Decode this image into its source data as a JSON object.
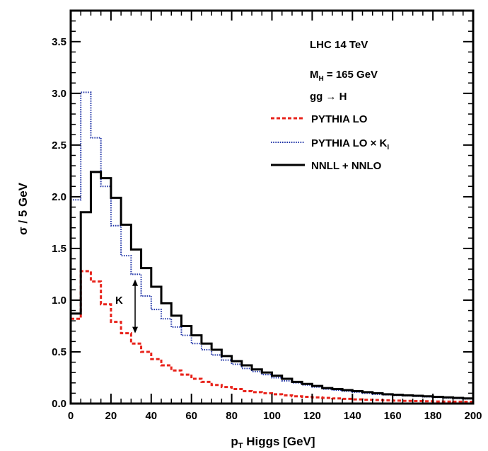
{
  "chart_data": {
    "type": "line",
    "xlabel_main": "p",
    "xlabel_sub": "T",
    "xlabel_rest": " Higgs [GeV]",
    "ylabel": "σ / 5 GeV",
    "xlim": [
      0,
      200
    ],
    "ylim": [
      0,
      3.8
    ],
    "xticks": [
      "0",
      "20",
      "40",
      "60",
      "80",
      "100",
      "120",
      "140",
      "160",
      "180",
      "200"
    ],
    "yticks": [
      "0.0",
      "0.5",
      "1.0",
      "1.5",
      "2.0",
      "2.5",
      "3.0",
      "3.5"
    ],
    "bin_edges": [
      0,
      5,
      10,
      15,
      20,
      25,
      30,
      35,
      40,
      45,
      50,
      55,
      60,
      65,
      70,
      75,
      80,
      85,
      90,
      95,
      100,
      105,
      110,
      115,
      120,
      125,
      130,
      135,
      140,
      145,
      150,
      155,
      160,
      165,
      170,
      175,
      180,
      185,
      190,
      195,
      200
    ],
    "series": [
      {
        "name": "PYTHIA LO",
        "color": "#e8231b",
        "style": "dashed",
        "values": [
          0.82,
          1.28,
          1.18,
          0.96,
          0.79,
          0.68,
          0.58,
          0.5,
          0.43,
          0.37,
          0.32,
          0.28,
          0.24,
          0.21,
          0.18,
          0.16,
          0.14,
          0.12,
          0.11,
          0.1,
          0.09,
          0.08,
          0.07,
          0.065,
          0.06,
          0.055,
          0.05,
          0.045,
          0.04,
          0.037,
          0.034,
          0.031,
          0.028,
          0.026,
          0.024,
          0.022,
          0.02,
          0.019,
          0.018,
          0.017
        ]
      },
      {
        "name": "PYTHIA LO × K",
        "name_sub": "I",
        "color": "#2236a8",
        "style": "dotted",
        "values": [
          1.97,
          3.01,
          2.57,
          2.1,
          1.72,
          1.43,
          1.25,
          1.04,
          0.91,
          0.82,
          0.74,
          0.66,
          0.58,
          0.52,
          0.47,
          0.42,
          0.38,
          0.34,
          0.31,
          0.28,
          0.25,
          0.22,
          0.2,
          0.18,
          0.16,
          0.14,
          0.13,
          0.12,
          0.11,
          0.1,
          0.09,
          0.085,
          0.08,
          0.075,
          0.07,
          0.065,
          0.06,
          0.055,
          0.05,
          0.045
        ]
      },
      {
        "name": "NNLL + NNLO",
        "color": "#000000",
        "style": "solid",
        "values": [
          0.87,
          1.85,
          2.24,
          2.18,
          1.99,
          1.73,
          1.49,
          1.31,
          1.13,
          0.97,
          0.85,
          0.75,
          0.66,
          0.58,
          0.52,
          0.46,
          0.41,
          0.37,
          0.33,
          0.3,
          0.27,
          0.24,
          0.21,
          0.19,
          0.17,
          0.15,
          0.14,
          0.13,
          0.12,
          0.11,
          0.1,
          0.09,
          0.085,
          0.08,
          0.075,
          0.07,
          0.065,
          0.06,
          0.055,
          0.05
        ]
      }
    ],
    "annotations": {
      "line1": "LHC 14 TeV",
      "mass_main": "M",
      "mass_sub": "H",
      "mass_rest": " = 165 GeV",
      "process": "gg → H",
      "k_label": "K",
      "k_arrow_x": 32,
      "k_arrow_y": [
        0.68,
        1.2
      ]
    },
    "legend_position": "top-right",
    "grid": false
  }
}
